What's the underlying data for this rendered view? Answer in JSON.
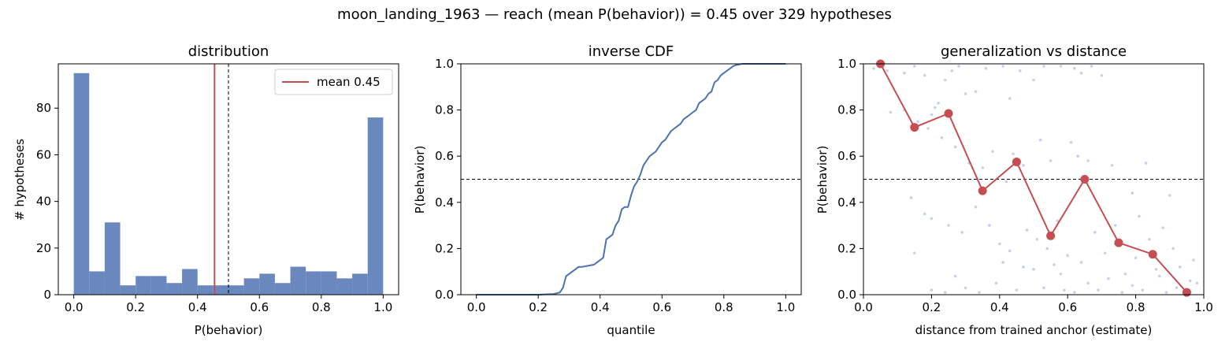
{
  "suptitle": "moon_landing_1963  —  reach (mean P(behavior)) = 0.45  over 329 hypotheses",
  "colors": {
    "blue": "#6a88be",
    "line_blue": "#4c72b0",
    "red": "#c44e52",
    "scatter": "#b8c7e0"
  },
  "chart_data": [
    {
      "type": "bar",
      "title": "distribution",
      "xlabel": "P(behavior)",
      "ylabel": "# hypotheses",
      "xlim": [
        -0.05,
        1.05
      ],
      "ylim": [
        0,
        99
      ],
      "xticks": [
        0.0,
        0.2,
        0.4,
        0.6,
        0.8,
        1.0
      ],
      "yticks": [
        0,
        20,
        40,
        60,
        80
      ],
      "bin_edges": [
        0.0,
        0.05,
        0.1,
        0.15,
        0.2,
        0.25,
        0.3,
        0.35,
        0.4,
        0.45,
        0.5,
        0.55,
        0.6,
        0.65,
        0.7,
        0.75,
        0.8,
        0.85,
        0.9,
        0.95,
        1.0
      ],
      "counts": [
        95,
        10,
        31,
        4,
        8,
        8,
        5,
        11,
        4,
        4,
        4,
        7,
        9,
        5,
        12,
        10,
        10,
        7,
        9,
        76
      ],
      "mean_line": 0.455,
      "threshold_line": 0.5,
      "legend": {
        "label": "mean 0.45",
        "location": "upper right"
      }
    },
    {
      "type": "line",
      "title": "inverse CDF",
      "xlabel": "quantile",
      "ylabel": "P(behavior)",
      "xlim": [
        -0.05,
        1.05
      ],
      "ylim": [
        0,
        1.0
      ],
      "xticks": [
        0.0,
        0.2,
        0.4,
        0.6,
        0.8,
        1.0
      ],
      "yticks": [
        0.0,
        0.2,
        0.4,
        0.6,
        0.8,
        1.0
      ],
      "threshold_line": 0.5,
      "x": [
        0.0,
        0.2,
        0.25,
        0.27,
        0.28,
        0.29,
        0.3,
        0.31,
        0.32,
        0.33,
        0.34,
        0.36,
        0.38,
        0.4,
        0.41,
        0.42,
        0.43,
        0.44,
        0.45,
        0.46,
        0.47,
        0.48,
        0.49,
        0.5,
        0.51,
        0.52,
        0.53,
        0.54,
        0.55,
        0.56,
        0.57,
        0.58,
        0.59,
        0.6,
        0.61,
        0.62,
        0.63,
        0.64,
        0.65,
        0.66,
        0.67,
        0.68,
        0.69,
        0.7,
        0.71,
        0.72,
        0.73,
        0.74,
        0.75,
        0.76,
        0.77,
        0.78,
        0.79,
        0.8,
        0.81,
        0.82,
        0.83,
        0.84,
        0.86,
        0.9,
        1.0
      ],
      "y": [
        0.0,
        0.0,
        0.003,
        0.01,
        0.03,
        0.08,
        0.09,
        0.1,
        0.11,
        0.12,
        0.12,
        0.125,
        0.13,
        0.15,
        0.16,
        0.24,
        0.25,
        0.26,
        0.3,
        0.32,
        0.37,
        0.38,
        0.38,
        0.43,
        0.47,
        0.49,
        0.52,
        0.56,
        0.58,
        0.6,
        0.61,
        0.62,
        0.64,
        0.66,
        0.67,
        0.69,
        0.71,
        0.72,
        0.73,
        0.74,
        0.76,
        0.77,
        0.78,
        0.79,
        0.8,
        0.83,
        0.84,
        0.85,
        0.87,
        0.88,
        0.92,
        0.93,
        0.95,
        0.96,
        0.97,
        0.98,
        0.99,
        0.995,
        1.0,
        1.0,
        1.0
      ]
    },
    {
      "type": "scatter",
      "title": "generalization vs distance",
      "xlabel": "distance from trained anchor (estimate)",
      "ylabel": "P(behavior)",
      "xlim": [
        0,
        1.0
      ],
      "ylim": [
        0,
        1.0
      ],
      "xticks": [
        0.0,
        0.2,
        0.4,
        0.6,
        0.8,
        1.0
      ],
      "yticks": [
        0.0,
        0.2,
        0.4,
        0.6,
        0.8,
        1.0
      ],
      "threshold_line": 0.5,
      "binned_line": {
        "x": [
          0.05,
          0.15,
          0.25,
          0.35,
          0.45,
          0.55,
          0.65,
          0.75,
          0.85,
          0.95
        ],
        "y": [
          1.0,
          0.725,
          0.785,
          0.45,
          0.575,
          0.255,
          0.5,
          0.225,
          0.175,
          0.01
        ]
      },
      "points": [
        [
          0.03,
          0.98
        ],
        [
          0.07,
          0.97
        ],
        [
          0.12,
          0.96
        ],
        [
          0.15,
          0.99
        ],
        [
          0.18,
          0.95
        ],
        [
          0.2,
          0.78
        ],
        [
          0.21,
          0.81
        ],
        [
          0.22,
          0.83
        ],
        [
          0.24,
          0.93
        ],
        [
          0.26,
          0.97
        ],
        [
          0.28,
          0.99
        ],
        [
          0.3,
          0.87
        ],
        [
          0.33,
          0.88
        ],
        [
          0.36,
          0.98
        ],
        [
          0.41,
          0.99
        ],
        [
          0.43,
          0.85
        ],
        [
          0.46,
          0.97
        ],
        [
          0.5,
          0.93
        ],
        [
          0.53,
          0.99
        ],
        [
          0.58,
          0.99
        ],
        [
          0.62,
          0.98
        ],
        [
          0.64,
          0.96
        ],
        [
          0.67,
          0.99
        ],
        [
          0.7,
          0.95
        ],
        [
          0.08,
          0.79
        ],
        [
          0.12,
          0.8
        ],
        [
          0.16,
          0.75
        ],
        [
          0.19,
          0.72
        ],
        [
          0.23,
          0.68
        ],
        [
          0.27,
          0.64
        ],
        [
          0.31,
          0.57
        ],
        [
          0.35,
          0.55
        ],
        [
          0.38,
          0.62
        ],
        [
          0.42,
          0.49
        ],
        [
          0.44,
          0.61
        ],
        [
          0.47,
          0.56
        ],
        [
          0.52,
          0.67
        ],
        [
          0.55,
          0.58
        ],
        [
          0.61,
          0.66
        ],
        [
          0.63,
          0.6
        ],
        [
          0.66,
          0.58
        ],
        [
          0.73,
          0.56
        ],
        [
          0.79,
          0.44
        ],
        [
          0.83,
          0.57
        ],
        [
          0.9,
          0.43
        ],
        [
          0.14,
          0.42
        ],
        [
          0.18,
          0.35
        ],
        [
          0.2,
          0.33
        ],
        [
          0.25,
          0.3
        ],
        [
          0.29,
          0.27
        ],
        [
          0.33,
          0.38
        ],
        [
          0.37,
          0.3
        ],
        [
          0.4,
          0.22
        ],
        [
          0.43,
          0.19
        ],
        [
          0.48,
          0.28
        ],
        [
          0.51,
          0.24
        ],
        [
          0.54,
          0.2
        ],
        [
          0.57,
          0.32
        ],
        [
          0.6,
          0.17
        ],
        [
          0.64,
          0.14
        ],
        [
          0.68,
          0.27
        ],
        [
          0.71,
          0.18
        ],
        [
          0.74,
          0.22
        ],
        [
          0.77,
          0.09
        ],
        [
          0.8,
          0.16
        ],
        [
          0.84,
          0.24
        ],
        [
          0.87,
          0.08
        ],
        [
          0.93,
          0.12
        ],
        [
          0.96,
          0.06
        ],
        [
          0.15,
          0.18
        ],
        [
          0.2,
          0.02
        ],
        [
          0.24,
          0.01
        ],
        [
          0.27,
          0.08
        ],
        [
          0.3,
          0.03
        ],
        [
          0.34,
          0.01
        ],
        [
          0.39,
          0.05
        ],
        [
          0.45,
          0.02
        ],
        [
          0.5,
          0.11
        ],
        [
          0.53,
          0.03
        ],
        [
          0.56,
          0.13
        ],
        [
          0.59,
          0.02
        ],
        [
          0.62,
          0.01
        ],
        [
          0.66,
          0.05
        ],
        [
          0.69,
          0.02
        ],
        [
          0.72,
          0.07
        ],
        [
          0.76,
          0.01
        ],
        [
          0.79,
          0.04
        ],
        [
          0.82,
          0.02
        ],
        [
          0.86,
          0.11
        ],
        [
          0.89,
          0.01
        ],
        [
          0.92,
          0.03
        ],
        [
          0.95,
          0.02
        ],
        [
          0.98,
          0.05
        ],
        [
          0.41,
          0.14
        ],
        [
          0.47,
          0.12
        ],
        [
          0.58,
          0.09
        ],
        [
          0.74,
          0.3
        ],
        [
          0.81,
          0.34
        ],
        [
          0.88,
          0.29
        ],
        [
          0.91,
          0.2
        ],
        [
          0.97,
          0.15
        ]
      ]
    }
  ]
}
